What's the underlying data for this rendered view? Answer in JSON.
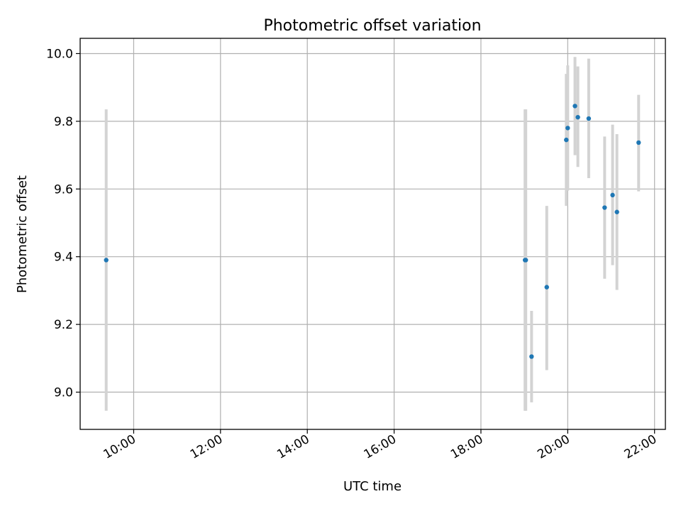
{
  "chart_data": {
    "type": "scatter",
    "title": "Photometric offset variation",
    "xlabel": "UTC time",
    "ylabel": "Photometric offset",
    "x_ticks": [
      "10:00",
      "12:00",
      "14:00",
      "16:00",
      "18:00",
      "20:00",
      "22:00"
    ],
    "y_ticks": [
      "9.0",
      "9.2",
      "9.4",
      "9.6",
      "9.8",
      "10.0"
    ],
    "xlim": [
      "08:46",
      "22:15"
    ],
    "ylim": [
      8.89,
      10.045
    ],
    "grid": true,
    "colors": {
      "point": "#1f77b4",
      "errorbar": "#d3d3d3",
      "grid": "#b0b0b0"
    },
    "series": [
      {
        "points": [
          {
            "x": "09:22",
            "y": 9.39,
            "err_low": 8.945,
            "err_high": 9.835
          },
          {
            "x": "19:01",
            "y": 9.39,
            "err_low": 8.945,
            "err_high": 9.835
          },
          {
            "x": "19:02",
            "y": 9.39,
            "err_low": 8.945,
            "err_high": 9.835
          },
          {
            "x": "19:10",
            "y": 9.105,
            "err_low": 8.97,
            "err_high": 9.24
          },
          {
            "x": "19:31",
            "y": 9.31,
            "err_low": 9.065,
            "err_high": 9.55
          },
          {
            "x": "19:58",
            "y": 9.745,
            "err_low": 9.55,
            "err_high": 9.94
          },
          {
            "x": "20:00",
            "y": 9.78,
            "err_low": 9.595,
            "err_high": 9.965
          },
          {
            "x": "20:10",
            "y": 9.845,
            "err_low": 9.7,
            "err_high": 9.99
          },
          {
            "x": "20:14",
            "y": 9.812,
            "err_low": 9.665,
            "err_high": 9.962
          },
          {
            "x": "20:29",
            "y": 9.808,
            "err_low": 9.632,
            "err_high": 9.985
          },
          {
            "x": "20:51",
            "y": 9.545,
            "err_low": 9.335,
            "err_high": 9.755
          },
          {
            "x": "21:02",
            "y": 9.582,
            "err_low": 9.375,
            "err_high": 9.79
          },
          {
            "x": "21:08",
            "y": 9.532,
            "err_low": 9.302,
            "err_high": 9.762
          },
          {
            "x": "21:38",
            "y": 9.737,
            "err_low": 9.593,
            "err_high": 9.878
          }
        ]
      }
    ]
  }
}
